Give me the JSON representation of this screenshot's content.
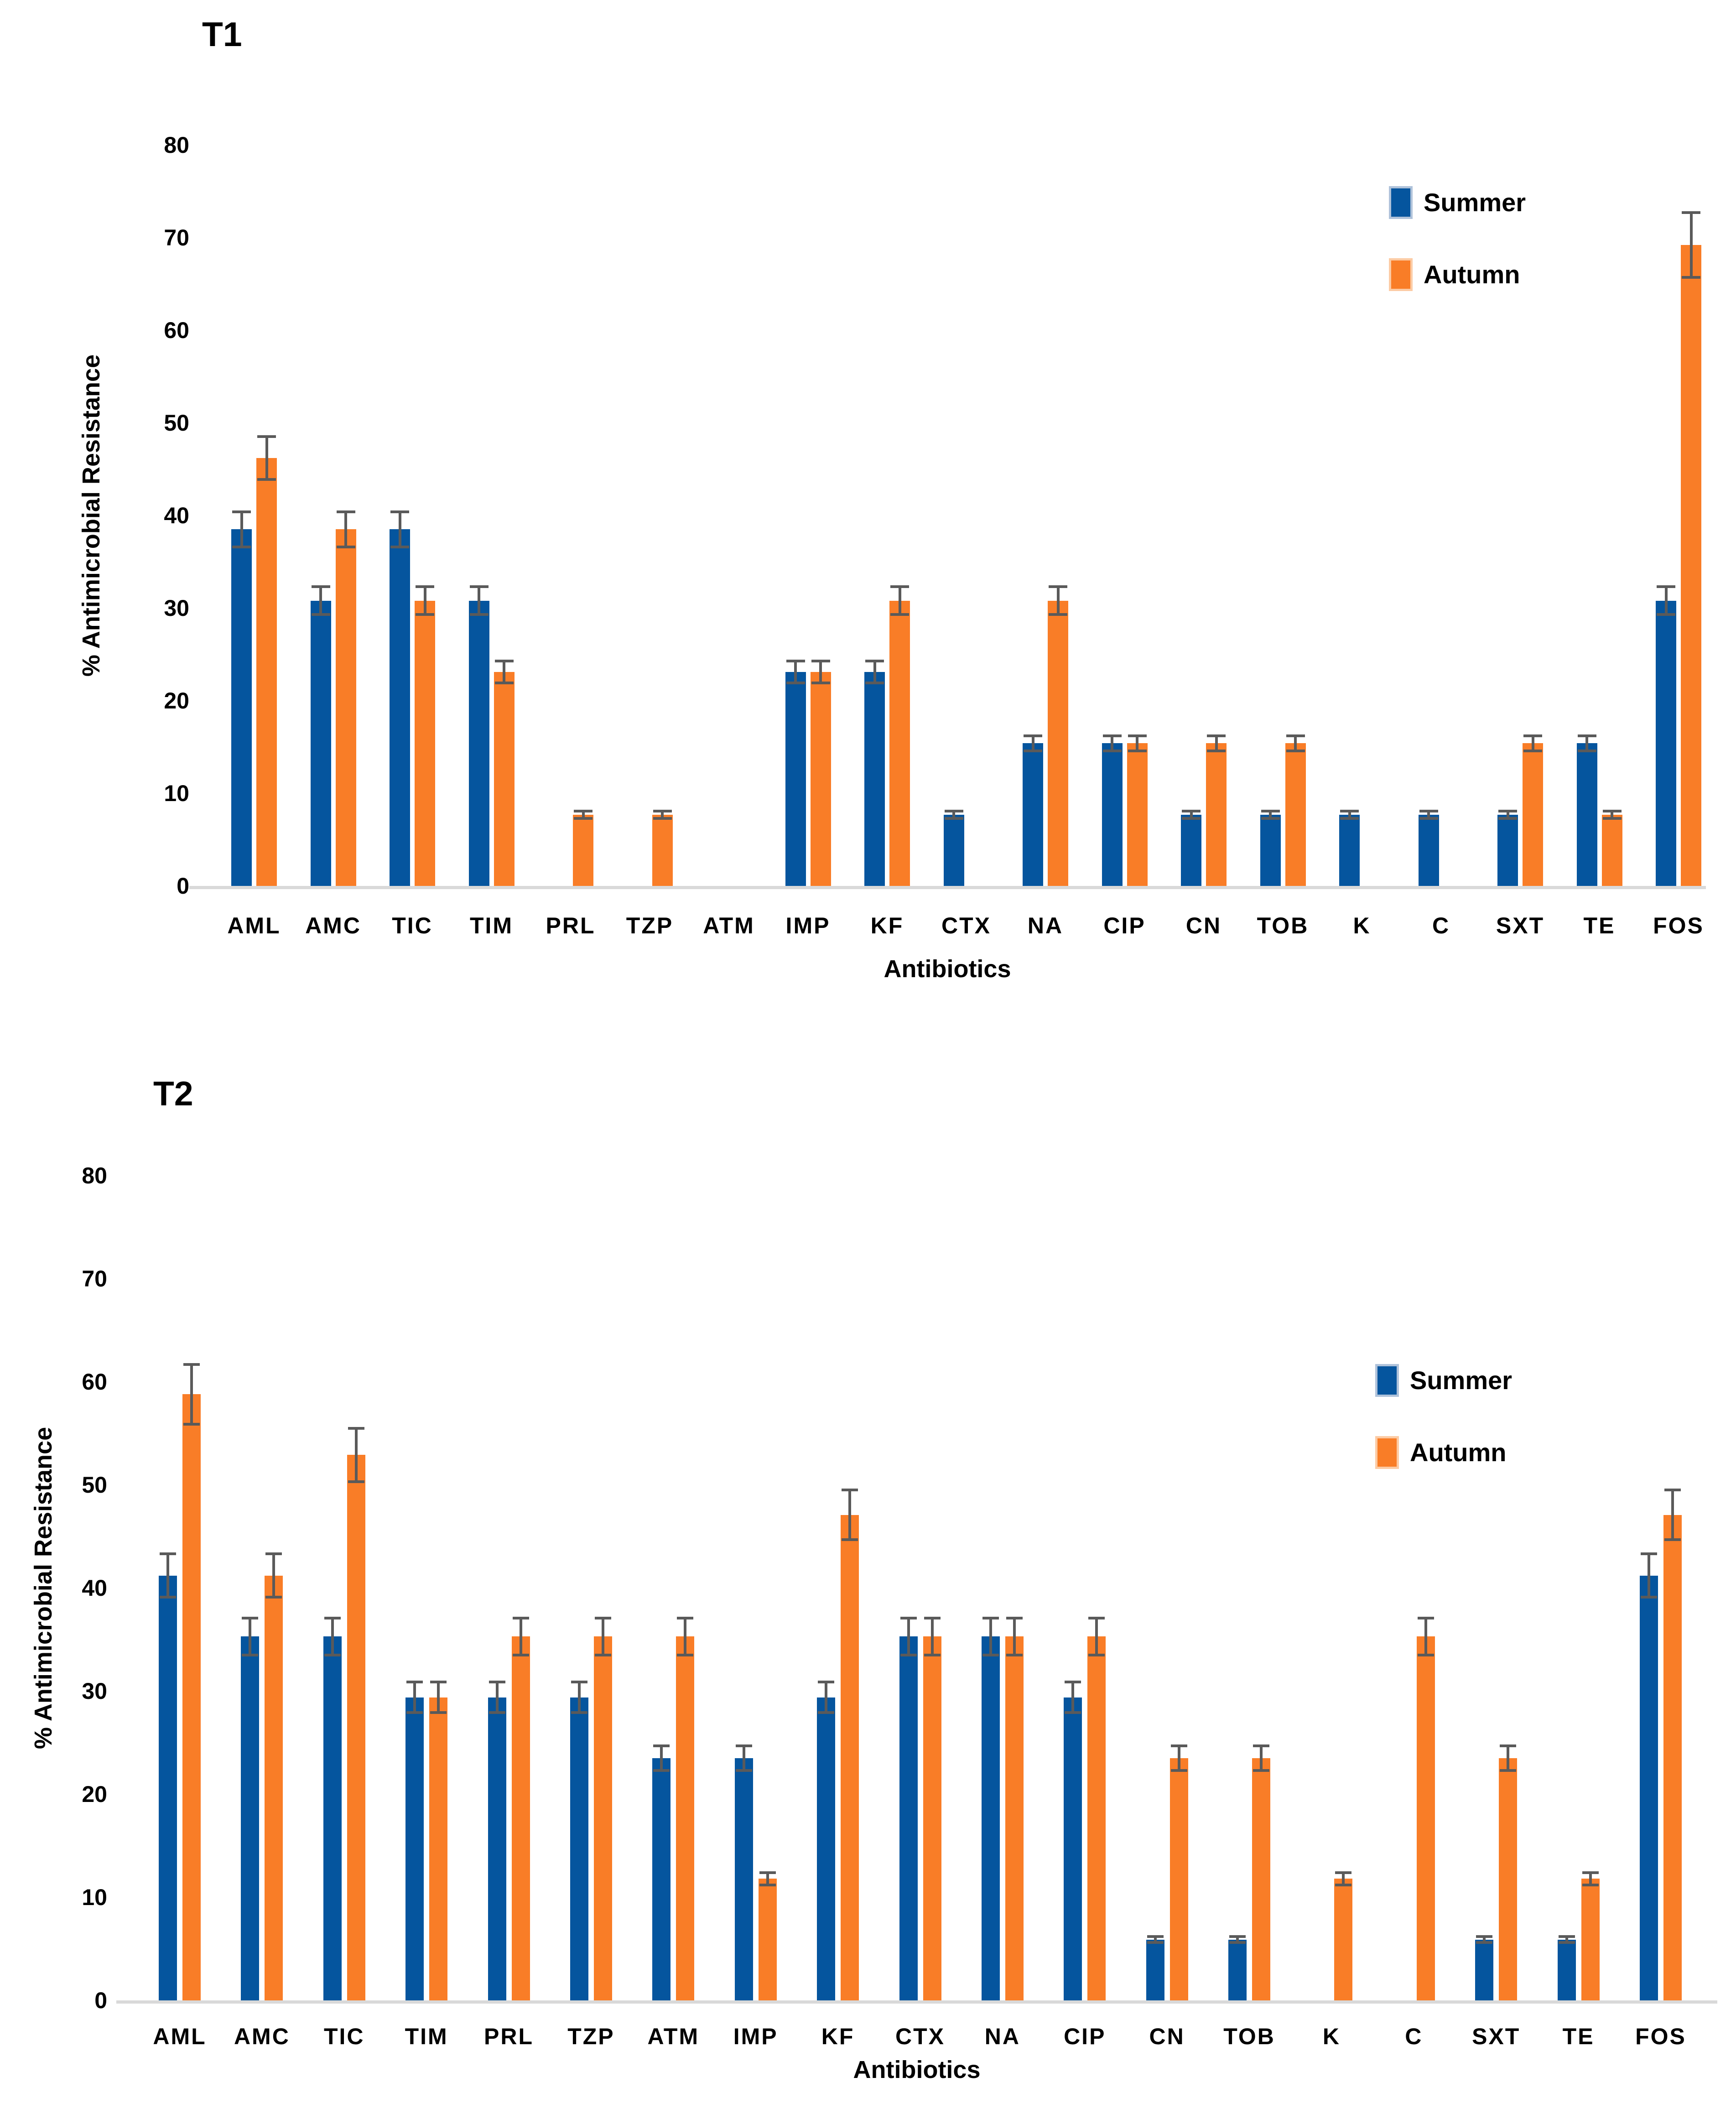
{
  "figure": {
    "background": "#FFFFFF",
    "text_color": "#000000",
    "axis_line_color": "#D9D9D9",
    "error_bar_color": "#5A5A5A",
    "summer_color": "#05559E",
    "autumn_color": "#F97D27"
  },
  "chart_data": [
    {
      "type": "bar",
      "title": "T1",
      "xlabel": "Antibiotics",
      "ylabel": "% Antimicrobial Resistance",
      "ylim": [
        0,
        80
      ],
      "yticks": [
        0,
        10,
        20,
        30,
        40,
        50,
        60,
        70,
        80
      ],
      "grid": false,
      "error_bars": true,
      "legend_position": "upper-right-inside",
      "categories": [
        "AML",
        "AMC",
        "TIC",
        "TIM",
        "PRL",
        "TZP",
        "ATM",
        "IMP",
        "KF",
        "CTX",
        "NA",
        "CIP",
        "CN",
        "TOB",
        "K",
        "C",
        "SXT",
        "TE",
        "FOS"
      ],
      "series": [
        {
          "name": "Summer",
          "color": "#05559E",
          "values": [
            38.5,
            30.8,
            38.5,
            30.8,
            0,
            0,
            0,
            23.1,
            23.1,
            7.7,
            15.4,
            15.4,
            7.7,
            7.7,
            7.7,
            7.7,
            7.7,
            15.4,
            30.8
          ],
          "errors": [
            1.9,
            1.5,
            1.9,
            1.5,
            0,
            0,
            0,
            1.2,
            1.2,
            0.4,
            0.8,
            0.8,
            0.4,
            0.4,
            0.4,
            0.4,
            0.4,
            0.8,
            1.5
          ]
        },
        {
          "name": "Autumn",
          "color": "#F97D27",
          "values": [
            46.2,
            38.5,
            30.8,
            23.1,
            7.7,
            7.7,
            0,
            23.1,
            30.8,
            0,
            30.8,
            15.4,
            15.4,
            15.4,
            0,
            0,
            15.4,
            7.7,
            69.2
          ],
          "errors": [
            2.3,
            1.9,
            1.5,
            1.2,
            0.4,
            0.4,
            0,
            1.2,
            1.5,
            0,
            1.5,
            0.8,
            0.8,
            0.8,
            0,
            0,
            0.8,
            0.4,
            3.5
          ]
        }
      ]
    },
    {
      "type": "bar",
      "title": "T2",
      "xlabel": "Antibiotics",
      "ylabel": "% Antimicrobial Resistance",
      "ylim": [
        0,
        80
      ],
      "yticks": [
        0,
        10,
        20,
        30,
        40,
        50,
        60,
        70,
        80
      ],
      "grid": false,
      "error_bars": true,
      "legend_position": "upper-right-inside",
      "categories": [
        "AML",
        "AMC",
        "TIC",
        "TIM",
        "PRL",
        "TZP",
        "ATM",
        "IMP",
        "KF",
        "CTX",
        "NA",
        "CIP",
        "CN",
        "TOB",
        "K",
        "C",
        "SXT",
        "TE",
        "FOS"
      ],
      "series": [
        {
          "name": "Summer",
          "color": "#05559E",
          "values": [
            41.2,
            35.3,
            35.3,
            29.4,
            29.4,
            29.4,
            23.5,
            23.5,
            29.4,
            35.3,
            35.3,
            29.4,
            5.9,
            5.9,
            0,
            0,
            5.9,
            5.9,
            41.2
          ],
          "errors": [
            2.1,
            1.8,
            1.8,
            1.5,
            1.5,
            1.5,
            1.2,
            1.2,
            1.5,
            1.8,
            1.8,
            1.5,
            0.3,
            0.3,
            0,
            0,
            0.3,
            0.3,
            2.1
          ]
        },
        {
          "name": "Autumn",
          "color": "#F97D27",
          "values": [
            58.8,
            41.2,
            52.9,
            29.4,
            35.3,
            35.3,
            35.3,
            11.8,
            47.1,
            35.3,
            35.3,
            35.3,
            23.5,
            23.5,
            11.8,
            35.3,
            23.5,
            11.8,
            47.1
          ],
          "errors": [
            2.9,
            2.1,
            2.6,
            1.5,
            1.8,
            1.8,
            1.8,
            0.6,
            2.4,
            1.8,
            1.8,
            1.8,
            1.2,
            1.2,
            0.6,
            1.8,
            1.2,
            0.6,
            2.4
          ]
        }
      ]
    }
  ]
}
